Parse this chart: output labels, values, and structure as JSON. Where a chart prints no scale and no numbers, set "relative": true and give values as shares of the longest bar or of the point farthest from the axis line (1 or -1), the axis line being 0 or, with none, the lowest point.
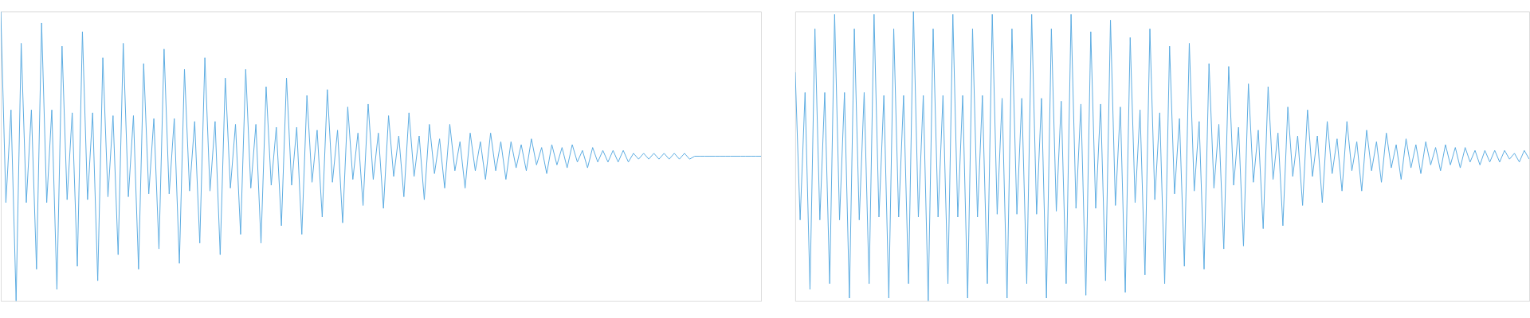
{
  "chart_data": [
    {
      "type": "line",
      "relative": true,
      "categories": [
        null,
        null,
        null,
        null,
        null,
        null,
        null,
        null,
        null,
        null,
        null,
        null,
        null,
        null,
        null,
        null,
        null,
        null,
        null,
        null,
        null,
        null,
        null,
        null,
        null,
        null,
        null,
        null,
        null,
        null,
        null,
        null,
        null,
        null,
        null,
        null,
        null,
        null,
        null,
        null,
        null,
        null,
        null,
        null,
        null,
        null,
        null,
        null,
        null,
        null,
        null,
        null,
        null,
        null,
        null,
        null,
        null,
        null,
        null,
        null,
        null,
        null,
        null,
        null,
        null,
        null,
        null,
        null,
        null,
        null,
        null,
        null,
        null,
        null,
        null,
        null,
        null,
        null,
        null,
        null,
        null,
        null,
        null,
        null,
        null,
        null,
        null,
        null,
        null,
        null,
        null,
        null,
        null,
        null,
        null,
        null,
        null,
        null,
        null,
        null,
        null,
        null,
        null,
        null,
        null,
        null,
        null,
        null,
        null,
        null,
        null,
        null,
        null,
        null,
        null,
        null,
        null,
        null,
        null,
        null,
        null,
        null,
        null,
        null,
        null,
        null,
        null,
        null,
        null,
        null,
        null,
        null,
        null,
        null,
        null,
        null,
        null,
        null,
        null,
        null,
        null,
        null,
        null,
        null,
        null,
        null,
        null,
        null,
        null,
        null
      ],
      "series": [
        {
          "color": "#5dade2",
          "values": [
            1.0,
            0.34,
            0.66,
            0.0,
            0.89,
            0.34,
            0.66,
            0.11,
            0.96,
            0.34,
            0.66,
            0.04,
            0.88,
            0.35,
            0.65,
            0.12,
            0.93,
            0.35,
            0.65,
            0.07,
            0.84,
            0.36,
            0.64,
            0.16,
            0.89,
            0.36,
            0.64,
            0.11,
            0.82,
            0.37,
            0.63,
            0.18,
            0.87,
            0.37,
            0.63,
            0.13,
            0.8,
            0.38,
            0.62,
            0.2,
            0.84,
            0.38,
            0.62,
            0.16,
            0.77,
            0.39,
            0.61,
            0.23,
            0.8,
            0.39,
            0.61,
            0.2,
            0.74,
            0.4,
            0.6,
            0.26,
            0.77,
            0.4,
            0.6,
            0.23,
            0.71,
            0.41,
            0.59,
            0.29,
            0.73,
            0.41,
            0.59,
            0.27,
            0.67,
            0.42,
            0.58,
            0.33,
            0.68,
            0.42,
            0.58,
            0.32,
            0.64,
            0.43,
            0.57,
            0.36,
            0.65,
            0.43,
            0.57,
            0.35,
            0.61,
            0.44,
            0.56,
            0.39,
            0.61,
            0.45,
            0.55,
            0.39,
            0.58,
            0.45,
            0.55,
            0.42,
            0.58,
            0.45,
            0.55,
            0.42,
            0.55,
            0.46,
            0.54,
            0.45,
            0.56,
            0.47,
            0.53,
            0.44,
            0.54,
            0.47,
            0.53,
            0.46,
            0.54,
            0.48,
            0.52,
            0.46,
            0.53,
            0.48,
            0.52,
            0.48,
            0.52,
            0.48,
            0.52,
            0.48,
            0.51,
            0.49,
            0.51,
            0.49,
            0.51,
            0.49,
            0.51,
            0.49,
            0.51,
            0.49,
            0.51,
            0.49,
            0.5,
            0.5,
            0.5,
            0.5,
            0.5,
            0.5,
            0.5,
            0.5,
            0.5,
            0.5,
            0.5,
            0.5,
            0.5,
            0.5
          ]
        }
      ]
    },
    {
      "type": "line",
      "relative": true,
      "categories": [
        null,
        null,
        null,
        null,
        null,
        null,
        null,
        null,
        null,
        null,
        null,
        null,
        null,
        null,
        null,
        null,
        null,
        null,
        null,
        null,
        null,
        null,
        null,
        null,
        null,
        null,
        null,
        null,
        null,
        null,
        null,
        null,
        null,
        null,
        null,
        null,
        null,
        null,
        null,
        null,
        null,
        null,
        null,
        null,
        null,
        null,
        null,
        null,
        null,
        null,
        null,
        null,
        null,
        null,
        null,
        null,
        null,
        null,
        null,
        null,
        null,
        null,
        null,
        null,
        null,
        null,
        null,
        null,
        null,
        null,
        null,
        null,
        null,
        null,
        null,
        null,
        null,
        null,
        null,
        null,
        null,
        null,
        null,
        null,
        null,
        null,
        null,
        null,
        null,
        null,
        null,
        null,
        null,
        null,
        null,
        null,
        null,
        null,
        null,
        null,
        null,
        null,
        null,
        null,
        null,
        null,
        null,
        null,
        null,
        null,
        null,
        null,
        null,
        null,
        null,
        null,
        null,
        null,
        null,
        null,
        null,
        null,
        null,
        null,
        null,
        null,
        null,
        null,
        null,
        null,
        null,
        null,
        null,
        null,
        null,
        null,
        null,
        null,
        null,
        null,
        null,
        null,
        null,
        null,
        null,
        null,
        null,
        null,
        null,
        null
      ],
      "series": [
        {
          "color": "#5dade2",
          "values": [
            0.79,
            0.28,
            0.72,
            0.04,
            0.94,
            0.28,
            0.72,
            0.06,
            0.99,
            0.28,
            0.72,
            0.01,
            0.94,
            0.28,
            0.72,
            0.06,
            0.99,
            0.29,
            0.71,
            0.01,
            0.94,
            0.29,
            0.71,
            0.06,
            1.0,
            0.29,
            0.71,
            0.0,
            0.94,
            0.29,
            0.71,
            0.06,
            0.99,
            0.29,
            0.71,
            0.01,
            0.94,
            0.29,
            0.71,
            0.06,
            0.99,
            0.3,
            0.7,
            0.01,
            0.94,
            0.3,
            0.7,
            0.06,
            0.99,
            0.3,
            0.7,
            0.01,
            0.94,
            0.31,
            0.69,
            0.06,
            0.99,
            0.32,
            0.68,
            0.02,
            0.93,
            0.32,
            0.68,
            0.07,
            0.97,
            0.33,
            0.67,
            0.03,
            0.91,
            0.34,
            0.66,
            0.09,
            0.94,
            0.35,
            0.65,
            0.06,
            0.88,
            0.37,
            0.63,
            0.12,
            0.89,
            0.38,
            0.62,
            0.11,
            0.82,
            0.39,
            0.61,
            0.18,
            0.81,
            0.4,
            0.6,
            0.19,
            0.75,
            0.41,
            0.59,
            0.25,
            0.74,
            0.42,
            0.58,
            0.26,
            0.67,
            0.43,
            0.57,
            0.33,
            0.66,
            0.43,
            0.57,
            0.34,
            0.62,
            0.44,
            0.56,
            0.38,
            0.62,
            0.45,
            0.55,
            0.38,
            0.59,
            0.45,
            0.55,
            0.41,
            0.58,
            0.46,
            0.54,
            0.42,
            0.56,
            0.46,
            0.54,
            0.44,
            0.55,
            0.47,
            0.53,
            0.45,
            0.54,
            0.47,
            0.53,
            0.46,
            0.53,
            0.48,
            0.52,
            0.47,
            0.52,
            0.48,
            0.52,
            0.48,
            0.52,
            0.49,
            0.51,
            0.48,
            0.52,
            0.49
          ]
        }
      ]
    }
  ]
}
